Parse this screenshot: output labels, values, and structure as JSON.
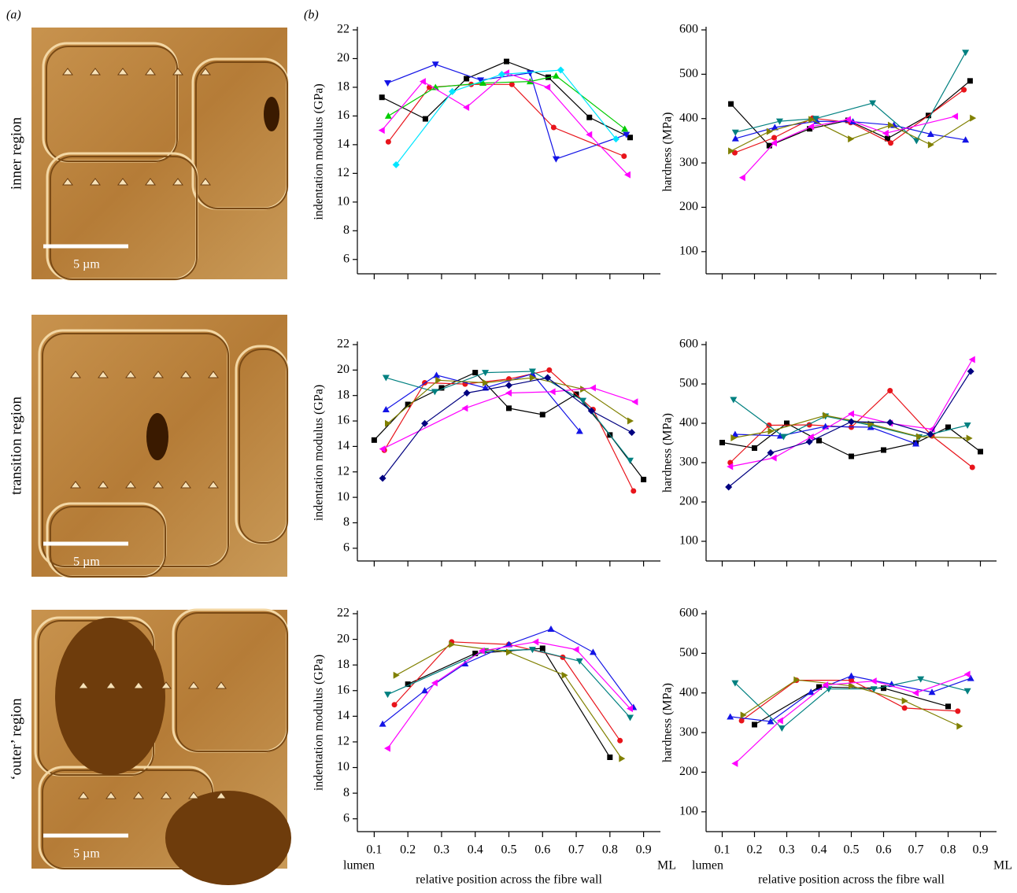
{
  "panel_labels": [
    "(a)",
    "(b)"
  ],
  "regions": [
    "inner region",
    "transition region",
    "‘outer’ region"
  ],
  "scale_bar_label": "5 µm",
  "chart_data": [
    {
      "type": "line",
      "ylabel": "indentation modulus (GPa)",
      "xlim": [
        0.05,
        0.95
      ],
      "xticks": [
        0.1,
        0.2,
        0.3,
        0.4,
        0.5,
        0.6,
        0.7,
        0.8,
        0.9
      ],
      "show_xtick_labels": false,
      "ylim": [
        5,
        22
      ],
      "yticks": [
        6,
        8,
        10,
        12,
        14,
        16,
        18,
        20,
        22
      ],
      "series": [
        {
          "color": "#000000",
          "marker": "square",
          "x": [
            0.123,
            0.252,
            0.374,
            0.493,
            0.617,
            0.739,
            0.86
          ],
          "values": [
            17.3,
            15.8,
            18.6,
            19.8,
            18.7,
            15.9,
            14.5
          ]
        },
        {
          "color": "#e8141b",
          "marker": "circle",
          "x": [
            0.142,
            0.264,
            0.388,
            0.509,
            0.633,
            0.842
          ],
          "values": [
            14.2,
            18.0,
            18.2,
            18.2,
            15.2,
            13.2
          ]
        },
        {
          "color": "#1414e6",
          "marker": "triangle-down",
          "x": [
            0.14,
            0.282,
            0.416,
            0.563,
            0.64,
            0.849
          ],
          "values": [
            18.3,
            19.6,
            18.5,
            19.0,
            13.0,
            14.7
          ]
        },
        {
          "color": "#00cc00",
          "marker": "triangle-up",
          "x": [
            0.142,
            0.282,
            0.423,
            0.563,
            0.64,
            0.844
          ],
          "values": [
            16.0,
            18.0,
            18.3,
            18.4,
            18.8,
            15.1
          ]
        },
        {
          "color": "#ff00ff",
          "marker": "triangle-left",
          "x": [
            0.123,
            0.245,
            0.374,
            0.493,
            0.615,
            0.739,
            0.853
          ],
          "values": [
            15.0,
            18.4,
            16.6,
            19.0,
            18.0,
            14.7,
            11.9
          ]
        },
        {
          "color": "#00e5ff",
          "marker": "diamond",
          "x": [
            0.165,
            0.332,
            0.479,
            0.654,
            0.818
          ],
          "values": [
            12.6,
            17.7,
            18.9,
            19.2,
            14.4
          ]
        }
      ]
    },
    {
      "type": "line",
      "ylabel": "hardness (MPa)",
      "xlim": [
        0.05,
        0.95
      ],
      "xticks": [
        0.1,
        0.2,
        0.3,
        0.4,
        0.5,
        0.6,
        0.7,
        0.8,
        0.9
      ],
      "show_xtick_labels": false,
      "ylim": [
        50,
        600
      ],
      "yticks": [
        100,
        200,
        300,
        400,
        500,
        600
      ],
      "series": [
        {
          "color": "#000000",
          "marker": "square",
          "x": [
            0.127,
            0.246,
            0.371,
            0.49,
            0.612,
            0.739,
            0.868
          ],
          "values": [
            433,
            339,
            377,
            396,
            355,
            407,
            485
          ]
        },
        {
          "color": "#e8141b",
          "marker": "circle",
          "x": [
            0.139,
            0.261,
            0.38,
            0.498,
            0.622,
            0.849
          ],
          "values": [
            323,
            357,
            401,
            391,
            345,
            465
          ]
        },
        {
          "color": "#1414e6",
          "marker": "triangle-up",
          "x": [
            0.141,
            0.263,
            0.393,
            0.505,
            0.632,
            0.746,
            0.854
          ],
          "values": [
            355,
            380,
            394,
            393,
            385,
            365,
            352
          ]
        },
        {
          "color": "#008080",
          "marker": "triangle-down",
          "x": [
            0.141,
            0.278,
            0.39,
            0.566,
            0.702,
            0.854
          ],
          "values": [
            369,
            394,
            400,
            435,
            350,
            549
          ]
        },
        {
          "color": "#808000",
          "marker": "triangle-right",
          "x": [
            0.127,
            0.246,
            0.376,
            0.498,
            0.622,
            0.746,
            0.876
          ],
          "values": [
            327,
            371,
            398,
            354,
            385,
            341,
            401
          ]
        },
        {
          "color": "#ff00ff",
          "marker": "triangle-left",
          "x": [
            0.163,
            0.261,
            0.376,
            0.49,
            0.607,
            0.822
          ],
          "values": [
            267,
            345,
            382,
            398,
            367,
            405
          ]
        }
      ]
    },
    {
      "type": "line",
      "ylabel": "indentation modulus (GPa)",
      "xlim": [
        0.05,
        0.95
      ],
      "xticks": [
        0.1,
        0.2,
        0.3,
        0.4,
        0.5,
        0.6,
        0.7,
        0.8,
        0.9
      ],
      "show_xtick_labels": false,
      "ylim": [
        5,
        22
      ],
      "yticks": [
        6,
        8,
        10,
        12,
        14,
        16,
        18,
        20,
        22
      ],
      "series": [
        {
          "color": "#000000",
          "marker": "square",
          "x": [
            0.1,
            0.2,
            0.3,
            0.4,
            0.5,
            0.6,
            0.7,
            0.8,
            0.9
          ],
          "values": [
            14.5,
            17.3,
            18.6,
            19.8,
            17.0,
            16.5,
            18.1,
            14.9,
            11.4
          ]
        },
        {
          "color": "#e8141b",
          "marker": "circle",
          "x": [
            0.13,
            0.25,
            0.37,
            0.5,
            0.62,
            0.75,
            0.87
          ],
          "values": [
            13.7,
            19.0,
            18.9,
            19.3,
            20.0,
            16.9,
            10.5
          ]
        },
        {
          "color": "#1414e6",
          "marker": "triangle-up",
          "x": [
            0.135,
            0.285,
            0.43,
            0.57,
            0.71
          ],
          "values": [
            16.9,
            19.6,
            18.6,
            19.7,
            15.2
          ]
        },
        {
          "color": "#008080",
          "marker": "triangle-down",
          "x": [
            0.135,
            0.28,
            0.43,
            0.57,
            0.72,
            0.86
          ],
          "values": [
            19.4,
            18.3,
            19.8,
            19.9,
            17.6,
            12.9
          ]
        },
        {
          "color": "#808000",
          "marker": "triangle-right",
          "x": [
            0.14,
            0.29,
            0.43,
            0.57,
            0.72,
            0.86
          ],
          "values": [
            15.8,
            19.2,
            19.0,
            19.4,
            18.5,
            16.0
          ]
        },
        {
          "color": "#ff00ff",
          "marker": "triangle-left",
          "x": [
            0.125,
            0.37,
            0.5,
            0.63,
            0.75,
            0.875
          ],
          "values": [
            13.8,
            17.0,
            18.2,
            18.3,
            18.6,
            17.5
          ]
        },
        {
          "color": "#000080",
          "marker": "diamond",
          "x": [
            0.125,
            0.25,
            0.375,
            0.5,
            0.615,
            0.745,
            0.865
          ],
          "values": [
            11.5,
            15.8,
            18.2,
            18.8,
            19.4,
            16.8,
            15.1
          ]
        }
      ]
    },
    {
      "type": "line",
      "ylabel": "hardness (MPa)",
      "xlim": [
        0.05,
        0.95
      ],
      "xticks": [
        0.1,
        0.2,
        0.3,
        0.4,
        0.5,
        0.6,
        0.7,
        0.8,
        0.9
      ],
      "show_xtick_labels": false,
      "ylim": [
        50,
        600
      ],
      "yticks": [
        100,
        200,
        300,
        400,
        500,
        600
      ],
      "series": [
        {
          "color": "#000000",
          "marker": "square",
          "x": [
            0.1,
            0.2,
            0.3,
            0.4,
            0.5,
            0.6,
            0.7,
            0.8,
            0.9
          ],
          "values": [
            351,
            337,
            400,
            356,
            316,
            332,
            350,
            390,
            328
          ]
        },
        {
          "color": "#e8141b",
          "marker": "circle",
          "x": [
            0.125,
            0.245,
            0.37,
            0.5,
            0.62,
            0.75,
            0.875
          ],
          "values": [
            300,
            395,
            396,
            390,
            483,
            368,
            288
          ]
        },
        {
          "color": "#1414e6",
          "marker": "triangle-up",
          "x": [
            0.14,
            0.28,
            0.42,
            0.56,
            0.7
          ],
          "values": [
            372,
            368,
            392,
            390,
            348
          ]
        },
        {
          "color": "#008080",
          "marker": "triangle-down",
          "x": [
            0.135,
            0.29,
            0.42,
            0.56,
            0.71,
            0.86
          ],
          "values": [
            460,
            366,
            418,
            395,
            365,
            395
          ]
        },
        {
          "color": "#808000",
          "marker": "triangle-right",
          "x": [
            0.135,
            0.25,
            0.42,
            0.56,
            0.71,
            0.865
          ],
          "values": [
            363,
            380,
            420,
            398,
            366,
            362
          ]
        },
        {
          "color": "#ff00ff",
          "marker": "triangle-left",
          "x": [
            0.125,
            0.26,
            0.375,
            0.5,
            0.62,
            0.75,
            0.875
          ],
          "values": [
            290,
            312,
            365,
            424,
            400,
            385,
            562
          ]
        },
        {
          "color": "#000080",
          "marker": "diamond",
          "x": [
            0.12,
            0.25,
            0.37,
            0.5,
            0.62,
            0.745,
            0.87
          ],
          "values": [
            238,
            325,
            353,
            404,
            402,
            372,
            532
          ]
        }
      ]
    },
    {
      "type": "line",
      "ylabel": "indentation modulus (GPa)",
      "xlabel": "relative position across the fibre wall",
      "x_end_labels": [
        "lumen",
        "ML"
      ],
      "xlim": [
        0.05,
        0.95
      ],
      "xticks": [
        0.1,
        0.2,
        0.3,
        0.4,
        0.5,
        0.6,
        0.7,
        0.8,
        0.9
      ],
      "show_xtick_labels": true,
      "ylim": [
        5,
        22
      ],
      "yticks": [
        6,
        8,
        10,
        12,
        14,
        16,
        18,
        20,
        22
      ],
      "series": [
        {
          "color": "#000000",
          "marker": "square",
          "x": [
            0.2,
            0.4,
            0.6,
            0.8
          ],
          "values": [
            16.5,
            18.9,
            19.3,
            10.8
          ]
        },
        {
          "color": "#e8141b",
          "marker": "circle",
          "x": [
            0.16,
            0.33,
            0.5,
            0.66,
            0.83
          ],
          "values": [
            14.9,
            19.8,
            19.6,
            18.6,
            12.1
          ]
        },
        {
          "color": "#1414e6",
          "marker": "triangle-up",
          "x": [
            0.125,
            0.25,
            0.37,
            0.5,
            0.625,
            0.75,
            0.87
          ],
          "values": [
            13.4,
            16.0,
            18.1,
            19.6,
            20.8,
            19.0,
            14.7
          ]
        },
        {
          "color": "#008080",
          "marker": "triangle-down",
          "x": [
            0.14,
            0.43,
            0.57,
            0.71,
            0.86
          ],
          "values": [
            15.7,
            19.1,
            19.2,
            18.3,
            13.9
          ]
        },
        {
          "color": "#808000",
          "marker": "triangle-right",
          "x": [
            0.165,
            0.33,
            0.5,
            0.665,
            0.835
          ],
          "values": [
            17.2,
            19.6,
            19.0,
            17.2,
            10.7
          ]
        },
        {
          "color": "#ff00ff",
          "marker": "triangle-left",
          "x": [
            0.14,
            0.28,
            0.42,
            0.58,
            0.7,
            0.86
          ],
          "values": [
            11.5,
            16.6,
            19.1,
            19.8,
            19.2,
            14.6
          ]
        }
      ]
    },
    {
      "type": "line",
      "ylabel": "hardness (MPa)",
      "xlabel": "relative position across the fibre wall",
      "x_end_labels": [
        "lumen",
        "ML"
      ],
      "xlim": [
        0.05,
        0.95
      ],
      "xticks": [
        0.1,
        0.2,
        0.3,
        0.4,
        0.5,
        0.6,
        0.7,
        0.8,
        0.9
      ],
      "show_xtick_labels": true,
      "ylim": [
        50,
        600
      ],
      "yticks": [
        100,
        200,
        300,
        400,
        500,
        600
      ],
      "series": [
        {
          "color": "#000000",
          "marker": "square",
          "x": [
            0.2,
            0.4,
            0.6,
            0.8
          ],
          "values": [
            320,
            415,
            412,
            366
          ]
        },
        {
          "color": "#e8141b",
          "marker": "circle",
          "x": [
            0.16,
            0.33,
            0.5,
            0.665,
            0.83
          ],
          "values": [
            330,
            432,
            432,
            362,
            354
          ]
        },
        {
          "color": "#1414e6",
          "marker": "triangle-up",
          "x": [
            0.125,
            0.25,
            0.375,
            0.5,
            0.625,
            0.75,
            0.87
          ],
          "values": [
            340,
            328,
            402,
            443,
            422,
            402,
            437
          ]
        },
        {
          "color": "#008080",
          "marker": "triangle-down",
          "x": [
            0.14,
            0.285,
            0.43,
            0.57,
            0.715,
            0.86
          ],
          "values": [
            425,
            311,
            410,
            410,
            435,
            405
          ]
        },
        {
          "color": "#808000",
          "marker": "triangle-right",
          "x": [
            0.165,
            0.33,
            0.5,
            0.665,
            0.835
          ],
          "values": [
            344,
            433,
            418,
            380,
            316
          ]
        },
        {
          "color": "#ff00ff",
          "marker": "triangle-left",
          "x": [
            0.14,
            0.28,
            0.42,
            0.57,
            0.7,
            0.86
          ],
          "values": [
            222,
            330,
            420,
            430,
            400,
            447
          ]
        }
      ]
    }
  ]
}
